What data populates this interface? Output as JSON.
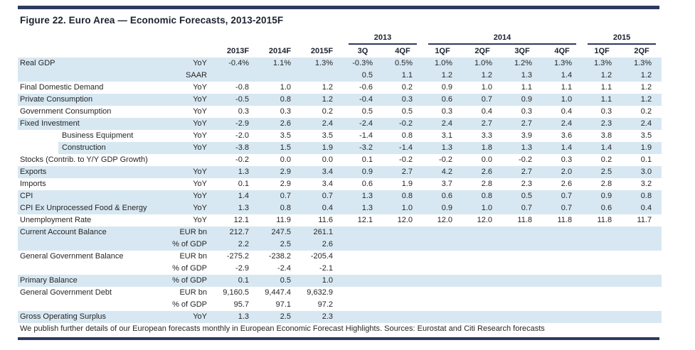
{
  "title": "Figure 22. Euro Area — Economic Forecasts, 2013-2015F",
  "footer": "We publish further details of our European forecasts monthly in European Economic Forecast Highlights. Sources: Eurostat and Citi Research forecasts",
  "colors": {
    "accent_navy": "#2d3a5e",
    "row_blue": "#d8e8f2"
  },
  "table": {
    "year_groups": [
      {
        "label": "2013",
        "span": 2
      },
      {
        "label": "2014",
        "span": 4
      },
      {
        "label": "2015",
        "span": 2
      }
    ],
    "column_headers": [
      "2013F",
      "2014F",
      "2015F",
      "3Q",
      "4QF",
      "1QF",
      "2QF",
      "3QF",
      "4QF",
      "1QF",
      "2QF"
    ],
    "rows": [
      {
        "label": "Real GDP",
        "measure": "YoY",
        "shade": "blue",
        "indent": false,
        "values": [
          "-0.4%",
          "1.1%",
          "1.3%",
          "-0.3%",
          "0.5%",
          "1.0%",
          "1.0%",
          "1.2%",
          "1.3%",
          "1.3%",
          "1.3%"
        ]
      },
      {
        "label": "",
        "measure": "SAAR",
        "shade": "blue",
        "indent": false,
        "values": [
          "",
          "",
          "",
          "0.5",
          "1.1",
          "1.2",
          "1.2",
          "1.3",
          "1.4",
          "1.2",
          "1.2"
        ]
      },
      {
        "label": "Final Domestic Demand",
        "measure": "YoY",
        "shade": "white",
        "indent": false,
        "values": [
          "-0.8",
          "1.0",
          "1.2",
          "-0.6",
          "0.2",
          "0.9",
          "1.0",
          "1.1",
          "1.1",
          "1.1",
          "1.2"
        ]
      },
      {
        "label": "Private Consumption",
        "measure": "YoY",
        "shade": "blue",
        "indent": false,
        "values": [
          "-0.5",
          "0.8",
          "1.2",
          "-0.4",
          "0.3",
          "0.6",
          "0.7",
          "0.9",
          "1.0",
          "1.1",
          "1.2"
        ]
      },
      {
        "label": "Government Consumption",
        "measure": "YoY",
        "shade": "white",
        "indent": false,
        "values": [
          "0.3",
          "0.3",
          "0.2",
          "0.5",
          "0.5",
          "0.3",
          "0.4",
          "0.3",
          "0.4",
          "0.3",
          "0.2"
        ]
      },
      {
        "label": "Fixed Investment",
        "measure": "YoY",
        "shade": "blue",
        "indent": false,
        "values": [
          "-2.9",
          "2.6",
          "2.4",
          "-2.4",
          "-0.2",
          "2.4",
          "2.7",
          "2.7",
          "2.4",
          "2.3",
          "2.4"
        ]
      },
      {
        "label": "Business Equipment",
        "measure": "YoY",
        "shade": "white",
        "indent": true,
        "values": [
          "-2.0",
          "3.5",
          "3.5",
          "-1.4",
          "0.8",
          "3.1",
          "3.3",
          "3.9",
          "3.6",
          "3.8",
          "3.5"
        ]
      },
      {
        "label": "Construction",
        "measure": "YoY",
        "shade": "blue",
        "indent": true,
        "shade_indent": true,
        "values": [
          "-3.8",
          "1.5",
          "1.9",
          "-3.2",
          "-1.4",
          "1.3",
          "1.8",
          "1.3",
          "1.4",
          "1.4",
          "1.9"
        ]
      },
      {
        "label": "Stocks (Contrib. to Y/Y GDP Growth)",
        "measure": "",
        "shade": "white",
        "indent": false,
        "values": [
          "-0.2",
          "0.0",
          "0.0",
          "0.1",
          "-0.2",
          "-0.2",
          "0.0",
          "-0.2",
          "0.3",
          "0.2",
          "0.1"
        ]
      },
      {
        "label": "Exports",
        "measure": "YoY",
        "shade": "blue",
        "indent": false,
        "values": [
          "1.3",
          "2.9",
          "3.4",
          "0.9",
          "2.7",
          "4.2",
          "2.6",
          "2.7",
          "2.0",
          "2.5",
          "3.0"
        ]
      },
      {
        "label": "Imports",
        "measure": "YoY",
        "shade": "white",
        "indent": false,
        "values": [
          "0.1",
          "2.9",
          "3.4",
          "0.6",
          "1.9",
          "3.7",
          "2.8",
          "2.3",
          "2.6",
          "2.8",
          "3.2"
        ]
      },
      {
        "label": "CPI",
        "measure": "YoY",
        "shade": "blue",
        "indent": false,
        "values": [
          "1.4",
          "0.7",
          "0.7",
          "1.3",
          "0.8",
          "0.6",
          "0.8",
          "0.5",
          "0.7",
          "0.9",
          "0.8"
        ]
      },
      {
        "label": "CPI Ex Unprocessed Food & Energy",
        "measure": "YoY",
        "shade": "blue",
        "indent": false,
        "values": [
          "1.3",
          "0.8",
          "0.4",
          "1.3",
          "1.0",
          "0.9",
          "1.0",
          "0.7",
          "0.7",
          "0.6",
          "0.4"
        ]
      },
      {
        "label": "Unemployment Rate",
        "measure": "YoY",
        "shade": "white",
        "indent": false,
        "values": [
          "12.1",
          "11.9",
          "11.6",
          "12.1",
          "12.0",
          "12.0",
          "12.0",
          "11.8",
          "11.8",
          "11.8",
          "11.7"
        ]
      },
      {
        "label": "Current Account Balance",
        "measure": "EUR bn",
        "shade": "blue",
        "indent": false,
        "values": [
          "212.7",
          "247.5",
          "261.1",
          "",
          "",
          "",
          "",
          "",
          "",
          "",
          ""
        ]
      },
      {
        "label": "",
        "measure": "% of GDP",
        "shade": "blue",
        "indent": false,
        "values": [
          "2.2",
          "2.5",
          "2.6",
          "",
          "",
          "",
          "",
          "",
          "",
          "",
          ""
        ]
      },
      {
        "label": "General Government Balance",
        "measure": "EUR bn",
        "shade": "white",
        "indent": false,
        "values": [
          "-275.2",
          "-238.2",
          "-205.4",
          "",
          "",
          "",
          "",
          "",
          "",
          "",
          ""
        ]
      },
      {
        "label": "",
        "measure": "% of GDP",
        "shade": "white",
        "indent": false,
        "values": [
          "-2.9",
          "-2.4",
          "-2.1",
          "",
          "",
          "",
          "",
          "",
          "",
          "",
          ""
        ]
      },
      {
        "label": "Primary Balance",
        "measure": "% of GDP",
        "shade": "blue",
        "indent": false,
        "values": [
          "0.1",
          "0.5",
          "1.0",
          "",
          "",
          "",
          "",
          "",
          "",
          "",
          ""
        ]
      },
      {
        "label": "General Government Debt",
        "measure": "EUR bn",
        "shade": "white",
        "indent": false,
        "values": [
          "9,160.5",
          "9,447.4",
          "9,632.9",
          "",
          "",
          "",
          "",
          "",
          "",
          "",
          ""
        ]
      },
      {
        "label": "",
        "measure": "% of GDP",
        "shade": "white",
        "indent": false,
        "values": [
          "95.7",
          "97.1",
          "97.2",
          "",
          "",
          "",
          "",
          "",
          "",
          "",
          ""
        ]
      },
      {
        "label": "Gross Operating Surplus",
        "measure": "YoY",
        "shade": "blue",
        "indent": false,
        "values": [
          "1.3",
          "2.5",
          "2.3",
          "",
          "",
          "",
          "",
          "",
          "",
          "",
          ""
        ]
      }
    ]
  }
}
